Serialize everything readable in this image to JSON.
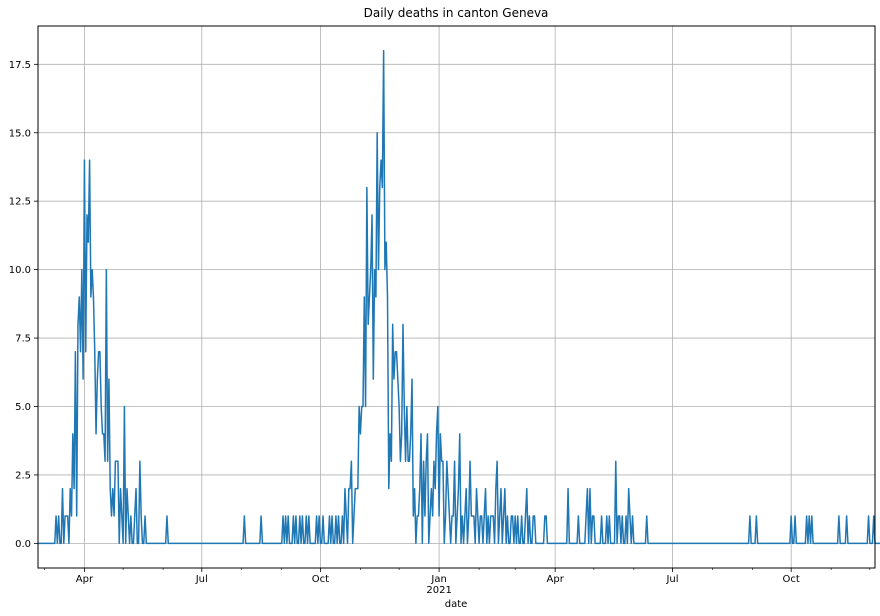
{
  "chart_data": {
    "type": "line",
    "title": "Daily deaths in canton Geneva",
    "xlabel": "date",
    "ylabel": "",
    "xlim": [
      "2020-02-25",
      "2021-12-05"
    ],
    "ylim": [
      -0.9,
      18.9
    ],
    "grid": true,
    "line_color": "#1f77b4",
    "y_ticks": [
      0.0,
      2.5,
      5.0,
      7.5,
      10.0,
      12.5,
      15.0,
      17.5
    ],
    "x_major_ticks": [
      {
        "date": "2020-04-01",
        "label": "Apr",
        "sublabel": ""
      },
      {
        "date": "2020-07-01",
        "label": "Jul",
        "sublabel": ""
      },
      {
        "date": "2020-10-01",
        "label": "Oct",
        "sublabel": ""
      },
      {
        "date": "2021-01-01",
        "label": "Jan",
        "sublabel": "2021"
      },
      {
        "date": "2021-04-01",
        "label": "Apr",
        "sublabel": ""
      },
      {
        "date": "2021-07-01",
        "label": "Jul",
        "sublabel": ""
      },
      {
        "date": "2021-10-01",
        "label": "Oct",
        "sublabel": ""
      }
    ],
    "x_minor_ticks": [
      "2020-03-01",
      "2020-05-01",
      "2020-06-01",
      "2020-08-01",
      "2020-09-01",
      "2020-11-01",
      "2020-12-01",
      "2021-02-01",
      "2021-03-01",
      "2021-05-01",
      "2021-06-01",
      "2021-08-01",
      "2021-09-01",
      "2021-11-01",
      "2021-12-01"
    ],
    "series": [
      {
        "name": "",
        "start_date": "2020-02-25",
        "values": [
          0,
          0,
          0,
          0,
          0,
          0,
          0,
          0,
          0,
          0,
          0,
          0,
          0,
          0,
          1,
          0,
          1,
          0,
          0,
          2,
          0,
          1,
          1,
          1,
          0,
          2,
          1,
          4,
          2,
          7,
          1,
          8,
          9,
          7,
          10,
          6,
          14,
          7,
          12,
          11,
          14,
          9,
          10,
          9,
          7,
          4,
          6,
          7,
          7,
          5,
          4,
          4,
          3,
          10,
          3,
          6,
          2,
          1,
          2,
          1,
          3,
          3,
          3,
          0,
          2,
          1,
          0,
          5,
          0,
          2,
          1,
          0,
          1,
          0,
          0,
          1,
          2,
          0,
          0,
          3,
          1,
          0,
          0,
          1,
          0,
          0,
          0,
          0,
          0,
          0,
          0,
          0,
          0,
          0,
          0,
          0,
          0,
          0,
          0,
          0,
          1,
          0,
          0,
          0,
          0,
          0,
          0,
          0,
          0,
          0,
          0,
          0,
          0,
          0,
          0,
          0,
          0,
          0,
          0,
          0,
          0,
          0,
          0,
          0,
          0,
          0,
          0,
          0,
          0,
          0,
          0,
          0,
          0,
          0,
          0,
          0,
          0,
          0,
          0,
          0,
          0,
          0,
          0,
          0,
          0,
          0,
          0,
          0,
          0,
          0,
          0,
          0,
          0,
          0,
          0,
          0,
          0,
          0,
          0,
          0,
          1,
          0,
          0,
          0,
          0,
          0,
          0,
          0,
          0,
          0,
          0,
          0,
          0,
          1,
          0,
          0,
          0,
          0,
          0,
          0,
          0,
          0,
          0,
          0,
          0,
          0,
          0,
          0,
          0,
          0,
          1,
          0,
          1,
          0,
          1,
          0,
          0,
          0,
          1,
          0,
          1,
          0,
          0,
          1,
          0,
          1,
          0,
          0,
          1,
          0,
          1,
          0,
          0,
          0,
          0,
          0,
          1,
          0,
          1,
          0,
          0,
          1,
          0,
          0,
          0,
          0,
          1,
          0,
          1,
          0,
          0,
          1,
          0,
          1,
          0,
          0,
          1,
          0,
          2,
          1,
          0,
          2,
          2,
          3,
          0,
          1,
          2,
          2,
          2,
          5,
          4,
          5,
          5,
          9,
          5,
          13,
          8,
          9,
          10,
          12,
          6,
          10,
          9,
          15,
          10,
          13,
          14,
          13,
          18,
          10,
          11,
          9,
          2,
          4,
          3,
          8,
          6,
          7,
          7,
          6,
          5,
          3,
          4,
          8,
          5,
          3,
          5,
          3,
          3,
          4,
          6,
          1,
          2,
          0,
          1,
          1,
          2,
          4,
          0,
          3,
          1,
          3,
          4,
          0,
          1,
          2,
          1,
          3,
          2,
          4,
          5,
          1,
          4,
          3,
          3,
          0,
          1,
          3,
          2,
          1,
          0,
          1,
          1,
          3,
          0,
          1,
          2,
          4,
          0,
          1,
          0,
          1,
          2,
          0,
          1,
          3,
          1,
          1,
          1,
          0,
          2,
          1,
          0,
          1,
          1,
          0,
          1,
          2,
          0,
          1,
          0,
          1,
          1,
          1,
          0,
          2,
          3,
          0,
          1,
          2,
          0,
          1,
          2,
          0,
          1,
          0,
          0,
          1,
          1,
          0,
          1,
          0,
          1,
          0,
          0,
          1,
          0,
          0,
          1,
          2,
          0,
          1,
          0,
          0,
          1,
          1,
          0,
          0,
          0,
          0,
          0,
          0,
          0,
          1,
          1,
          0,
          0,
          0,
          0,
          0,
          0,
          0,
          0,
          0,
          0,
          0,
          0,
          0,
          0,
          0,
          0,
          2,
          0,
          0,
          0,
          0,
          0,
          0,
          0,
          1,
          0,
          0,
          0,
          0,
          0,
          1,
          2,
          0,
          2,
          0,
          1,
          1,
          0,
          0,
          0,
          0,
          0,
          1,
          0,
          0,
          0,
          1,
          0,
          1,
          0,
          0,
          0,
          0,
          3,
          0,
          1,
          1,
          0,
          1,
          0,
          0,
          1,
          0,
          2,
          1,
          0,
          1,
          0,
          0,
          0,
          0,
          0,
          0,
          0,
          0,
          0,
          0,
          1,
          0,
          0,
          0,
          0,
          0,
          0,
          0,
          0,
          0,
          0,
          0,
          0,
          0,
          0,
          0,
          0,
          0,
          0,
          0,
          0,
          0,
          0,
          0,
          0,
          0,
          0,
          0,
          0,
          0,
          0,
          0,
          0,
          0,
          0,
          0,
          0,
          0,
          0,
          0,
          0,
          0,
          0,
          0,
          0,
          0,
          0,
          0,
          0,
          0,
          0,
          0,
          0,
          0,
          0,
          0,
          0,
          0,
          0,
          0,
          0,
          0,
          0,
          0,
          0,
          0,
          0,
          0,
          0,
          0,
          0,
          0,
          0,
          0,
          0,
          0,
          0,
          0,
          0,
          0,
          1,
          0,
          0,
          0,
          0,
          1,
          0,
          0,
          0,
          0,
          0,
          0,
          0,
          0,
          0,
          0,
          0,
          0,
          0,
          0,
          0,
          0,
          0,
          0,
          0,
          0,
          0,
          0,
          0,
          0,
          0,
          0,
          1,
          0,
          0,
          1,
          0,
          0,
          0,
          0,
          0,
          0,
          0,
          0,
          1,
          0,
          1,
          0,
          1,
          0,
          0,
          0,
          0,
          0,
          0,
          0,
          0,
          0,
          0,
          0,
          0,
          0,
          0,
          0,
          0,
          0,
          0,
          0,
          0,
          1,
          0,
          0,
          0,
          0,
          0,
          1,
          0,
          0,
          0,
          0,
          0,
          0,
          0,
          0,
          0,
          0,
          0,
          0,
          0,
          0,
          0,
          0,
          1,
          0,
          0,
          0,
          1,
          0,
          0,
          0,
          0,
          0,
          0,
          0,
          0,
          0,
          0,
          0,
          0
        ]
      }
    ]
  }
}
